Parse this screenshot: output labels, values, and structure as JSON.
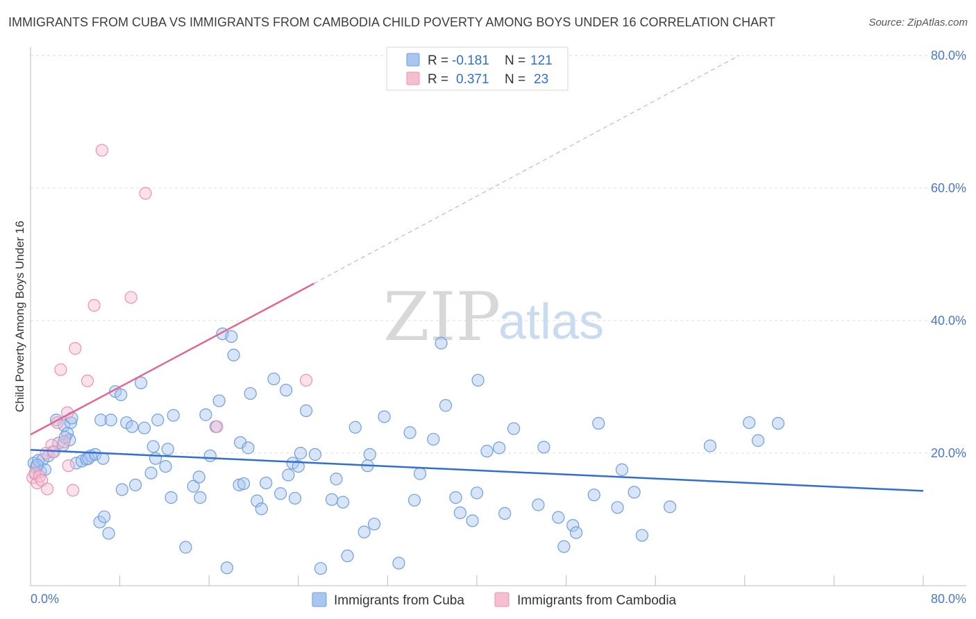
{
  "title": "IMMIGRANTS FROM CUBA VS IMMIGRANTS FROM CAMBODIA CHILD POVERTY AMONG BOYS UNDER 16 CORRELATION CHART",
  "source": "Source: ZipAtlas.com",
  "watermark": {
    "zip": "ZIP",
    "atlas": "atlas"
  },
  "colors": {
    "cuba_fill": "#a9c6f0",
    "cuba_stroke": "#6e9ee0",
    "cuba_line": "#2f6fd1",
    "cambodia_fill": "#f6bfd0",
    "cambodia_stroke": "#ec90ae",
    "cambodia_line": "#e2668e",
    "grid": "#dddddd",
    "tick_text": "#4a78c8"
  },
  "legend": {
    "rows": [
      {
        "r_label": "R =",
        "r_value": "-0.181",
        "n_label": "N =",
        "n_value": "121"
      },
      {
        "r_label": "R =",
        "r_value": "0.371",
        "n_label": "N =",
        "n_value": "23"
      }
    ]
  },
  "chart_data": {
    "type": "scatter",
    "title": "IMMIGRANTS FROM CUBA VS IMMIGRANTS FROM CAMBODIA CHILD POVERTY AMONG BOYS UNDER 16 CORRELATION CHART",
    "xlabel": "",
    "ylabel": "Child Poverty Among Boys Under 16",
    "xlim": [
      0,
      80
    ],
    "ylim": [
      0,
      82
    ],
    "x_tick_labels": [
      "0.0%",
      "80.0%"
    ],
    "y_tick_labels": [
      "20.0%",
      "40.0%",
      "60.0%",
      "80.0%"
    ],
    "y_ticks": [
      20,
      40,
      60,
      80
    ],
    "grid": true,
    "legend_position": "top-center",
    "series": [
      {
        "name": "Immigrants from Cuba",
        "r": -0.181,
        "n": 121,
        "trend": [
          [
            0,
            20.5
          ],
          [
            80,
            14.3
          ]
        ],
        "points": [
          [
            0.3,
            18.5
          ],
          [
            0.5,
            17.8
          ],
          [
            0.7,
            18.9
          ],
          [
            0.9,
            17.2
          ],
          [
            1.1,
            19.0
          ],
          [
            1.3,
            17.5
          ],
          [
            0.4,
            16.9
          ],
          [
            0.6,
            18.2
          ],
          [
            1.6,
            19.6
          ],
          [
            2.0,
            20.2
          ],
          [
            2.3,
            25.0
          ],
          [
            2.5,
            21.5
          ],
          [
            2.9,
            21.2
          ],
          [
            3.0,
            24.2
          ],
          [
            3.3,
            23.0
          ],
          [
            3.5,
            22.0
          ],
          [
            3.1,
            22.4
          ],
          [
            3.6,
            24.6
          ],
          [
            3.7,
            25.3
          ],
          [
            4.1,
            18.5
          ],
          [
            4.6,
            18.8
          ],
          [
            5.0,
            19.1
          ],
          [
            5.4,
            19.6
          ],
          [
            5.2,
            19.2
          ],
          [
            5.8,
            19.8
          ],
          [
            6.3,
            25.0
          ],
          [
            6.5,
            19.2
          ],
          [
            6.2,
            9.6
          ],
          [
            6.6,
            10.4
          ],
          [
            7.0,
            7.9
          ],
          [
            7.2,
            25.0
          ],
          [
            7.6,
            29.3
          ],
          [
            8.1,
            28.8
          ],
          [
            8.2,
            14.5
          ],
          [
            8.6,
            24.6
          ],
          [
            9.1,
            24.0
          ],
          [
            9.4,
            15.2
          ],
          [
            9.9,
            30.6
          ],
          [
            10.2,
            23.8
          ],
          [
            10.8,
            17.0
          ],
          [
            11.0,
            21.0
          ],
          [
            11.2,
            19.2
          ],
          [
            11.4,
            25.0
          ],
          [
            12.1,
            18.0
          ],
          [
            12.3,
            20.6
          ],
          [
            12.6,
            13.3
          ],
          [
            12.8,
            25.7
          ],
          [
            13.9,
            5.8
          ],
          [
            14.6,
            15.0
          ],
          [
            15.1,
            16.4
          ],
          [
            15.2,
            13.3
          ],
          [
            15.7,
            25.8
          ],
          [
            16.1,
            19.6
          ],
          [
            16.6,
            24.0
          ],
          [
            16.9,
            27.9
          ],
          [
            17.2,
            38.0
          ],
          [
            17.6,
            2.7
          ],
          [
            18.0,
            37.6
          ],
          [
            18.2,
            34.8
          ],
          [
            18.7,
            15.2
          ],
          [
            18.8,
            21.6
          ],
          [
            19.1,
            15.4
          ],
          [
            19.5,
            20.8
          ],
          [
            19.7,
            29.0
          ],
          [
            20.3,
            12.8
          ],
          [
            20.7,
            11.6
          ],
          [
            21.1,
            15.5
          ],
          [
            21.8,
            31.2
          ],
          [
            22.4,
            13.9
          ],
          [
            22.9,
            29.5
          ],
          [
            23.1,
            16.7
          ],
          [
            23.5,
            18.5
          ],
          [
            23.7,
            13.2
          ],
          [
            24.0,
            18.0
          ],
          [
            24.2,
            20.0
          ],
          [
            24.7,
            26.4
          ],
          [
            25.5,
            19.8
          ],
          [
            26.0,
            2.6
          ],
          [
            27.0,
            13.0
          ],
          [
            27.4,
            16.1
          ],
          [
            28.0,
            12.6
          ],
          [
            28.4,
            4.5
          ],
          [
            29.1,
            23.9
          ],
          [
            29.9,
            8.1
          ],
          [
            30.2,
            18.1
          ],
          [
            30.4,
            19.8
          ],
          [
            30.8,
            9.3
          ],
          [
            31.7,
            25.5
          ],
          [
            33.0,
            3.4
          ],
          [
            34.0,
            23.1
          ],
          [
            34.4,
            12.9
          ],
          [
            34.9,
            16.9
          ],
          [
            36.1,
            22.1
          ],
          [
            36.8,
            36.6
          ],
          [
            37.2,
            27.2
          ],
          [
            38.1,
            13.3
          ],
          [
            38.5,
            11.0
          ],
          [
            39.6,
            9.8
          ],
          [
            40.1,
            31.0
          ],
          [
            40.0,
            14.0
          ],
          [
            40.9,
            20.3
          ],
          [
            42.0,
            20.8
          ],
          [
            42.5,
            10.9
          ],
          [
            43.3,
            23.7
          ],
          [
            45.5,
            12.2
          ],
          [
            46.0,
            20.9
          ],
          [
            47.3,
            10.3
          ],
          [
            47.8,
            5.9
          ],
          [
            48.6,
            9.1
          ],
          [
            48.9,
            8.0
          ],
          [
            50.5,
            13.7
          ],
          [
            50.9,
            24.5
          ],
          [
            52.6,
            11.8
          ],
          [
            53.0,
            17.5
          ],
          [
            54.1,
            14.1
          ],
          [
            54.8,
            7.6
          ],
          [
            57.3,
            11.9
          ],
          [
            60.9,
            21.1
          ],
          [
            64.4,
            24.6
          ],
          [
            65.2,
            21.9
          ],
          [
            67.0,
            24.5
          ]
        ]
      },
      {
        "name": "Immigrants from Cambodia",
        "r": 0.371,
        "n": 23,
        "trend": [
          [
            0,
            22.8
          ],
          [
            25.4,
            45.6
          ]
        ],
        "trend_extended": [
          [
            25.4,
            45.6
          ],
          [
            63.5,
            80
          ]
        ],
        "points": [
          [
            0.2,
            16.3
          ],
          [
            0.4,
            17.0
          ],
          [
            0.6,
            15.5
          ],
          [
            0.8,
            16.5
          ],
          [
            1.0,
            15.9
          ],
          [
            1.4,
            20.0
          ],
          [
            1.5,
            14.6
          ],
          [
            1.9,
            21.2
          ],
          [
            2.1,
            20.2
          ],
          [
            2.4,
            24.6
          ],
          [
            2.7,
            32.6
          ],
          [
            3.0,
            21.7
          ],
          [
            3.3,
            26.1
          ],
          [
            3.4,
            18.1
          ],
          [
            3.8,
            14.4
          ],
          [
            4.0,
            35.8
          ],
          [
            5.1,
            30.9
          ],
          [
            5.7,
            42.3
          ],
          [
            6.4,
            65.7
          ],
          [
            9.0,
            43.5
          ],
          [
            10.3,
            59.2
          ],
          [
            16.7,
            24.0
          ],
          [
            24.7,
            31.0
          ]
        ]
      }
    ]
  },
  "bottom_legend": [
    "Immigrants from Cuba",
    "Immigrants from Cambodia"
  ]
}
